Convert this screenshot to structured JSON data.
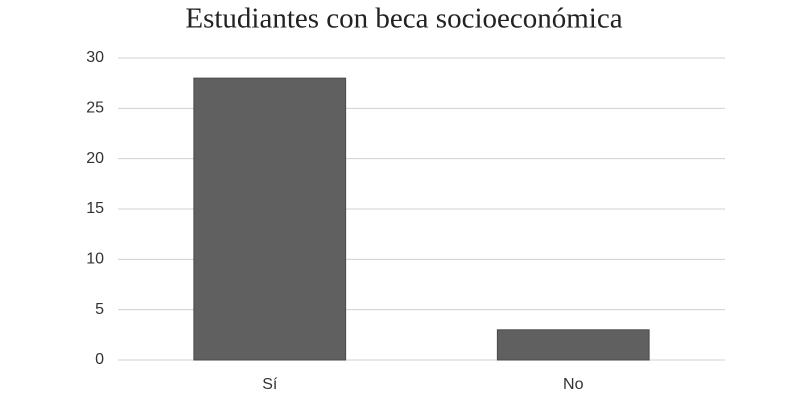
{
  "chart_data": {
    "type": "bar",
    "title": "Estudiantes con beca socioeconómica",
    "categories": [
      "Sí",
      "No"
    ],
    "values": [
      28,
      3
    ],
    "color": "#606060",
    "ylim": [
      0,
      30
    ],
    "yticks": [
      0,
      5,
      10,
      15,
      20,
      25,
      30
    ],
    "grid": true
  }
}
